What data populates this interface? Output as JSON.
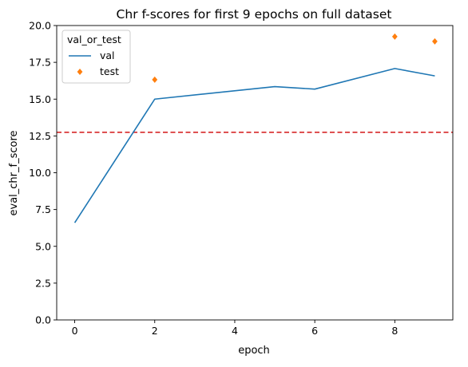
{
  "chart_data": {
    "type": "line",
    "title": "Chr f-scores for first 9 epochs on full dataset",
    "xlabel": "epoch",
    "ylabel": "eval_chr_f_score",
    "xlim": [
      -0.45,
      9.45
    ],
    "ylim": [
      0,
      20
    ],
    "xticks": [
      0,
      2,
      4,
      6,
      8
    ],
    "xtick_labels": [
      "0",
      "2",
      "4",
      "6",
      "8"
    ],
    "yticks": [
      0,
      2.5,
      5,
      7.5,
      10,
      12.5,
      15,
      17.5,
      20
    ],
    "ytick_labels": [
      "0.0",
      "2.5",
      "5.0",
      "7.5",
      "10.0",
      "12.5",
      "15.0",
      "17.5",
      "20.0"
    ],
    "grid": false,
    "legend": {
      "title": "val_or_test",
      "placement": "top-left"
    },
    "series": [
      {
        "name": "val",
        "kind": "line",
        "color": "#1f77b4",
        "x": [
          0,
          2,
          5,
          6,
          8,
          9
        ],
        "y": [
          6.6,
          15.0,
          15.85,
          15.68,
          17.08,
          16.58
        ]
      },
      {
        "name": "test",
        "kind": "scatter",
        "marker": "diamond",
        "color": "#ff7f0e",
        "x": [
          2,
          8,
          9
        ],
        "y": [
          16.32,
          19.25,
          18.92
        ]
      }
    ],
    "reference_line": {
      "orientation": "horizontal",
      "y": 12.75,
      "style": "dashed",
      "color": "#d62728"
    }
  }
}
